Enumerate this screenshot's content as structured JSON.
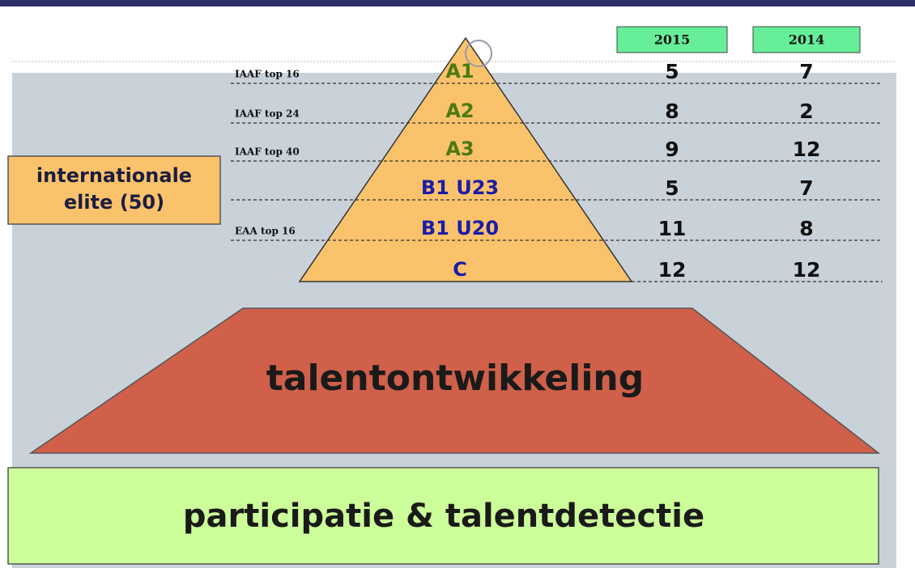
{
  "years": [
    "2015",
    "2014"
  ],
  "rows": [
    {
      "level": "A1",
      "criterion": "IAAF top 16",
      "values": [
        5,
        7
      ]
    },
    {
      "level": "A2",
      "criterion": "IAAF top 24",
      "values": [
        8,
        2
      ]
    },
    {
      "level": "A3",
      "criterion": "IAAF top 40",
      "values": [
        9,
        12
      ]
    },
    {
      "level": "B1 U23",
      "criterion": null,
      "values": [
        5,
        7
      ]
    },
    {
      "level": "B1 U20",
      "criterion": "EAA top 16",
      "values": [
        11,
        8
      ]
    },
    {
      "level": "C",
      "criterion": null,
      "values": [
        12,
        12
      ]
    }
  ],
  "elite_box": [
    "internationale",
    "elite (50)"
  ],
  "middle": "talentontwikkeling",
  "base": "participatie & talentdetectie"
}
